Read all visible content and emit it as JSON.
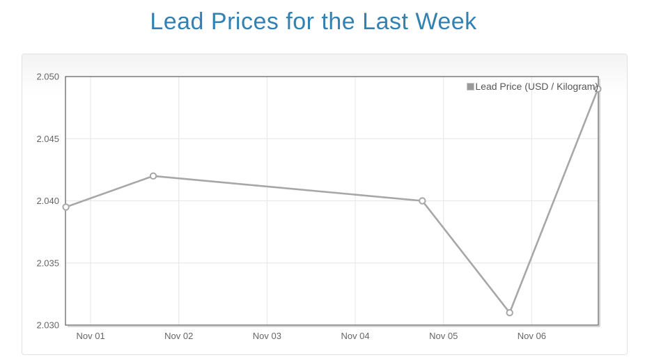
{
  "page": {
    "title": "Lead Prices for the Last Week"
  },
  "colors": {
    "title": "#3381b1",
    "line": "#a7a7a7",
    "marker_fill": "#ffffff",
    "grid": "#e6e6e6",
    "grid_shadow": "#d6d6d6",
    "axis_border": "#5a5a5a",
    "tick_label": "#666666",
    "legend_text": "#555555",
    "legend_swatch": "#999999",
    "plot_background": "#ffffff"
  },
  "chart_data": {
    "type": "line",
    "title": "Lead Prices for the Last Week",
    "legend": {
      "label": "Lead Price (USD / Kilogram)",
      "position": "top-right"
    },
    "grid": true,
    "xlabel": "",
    "ylabel": "",
    "x_range": [
      0.715,
      6.755
    ],
    "y_range": [
      2.03,
      2.05
    ],
    "x_ticks": [
      {
        "pos": 1,
        "label": "Nov 01"
      },
      {
        "pos": 2,
        "label": "Nov 02"
      },
      {
        "pos": 3,
        "label": "Nov 03"
      },
      {
        "pos": 4,
        "label": "Nov 04"
      },
      {
        "pos": 5,
        "label": "Nov 05"
      },
      {
        "pos": 6,
        "label": "Nov 06"
      }
    ],
    "y_ticks": [
      {
        "value": 2.03,
        "label": "2.030"
      },
      {
        "value": 2.035,
        "label": "2.035"
      },
      {
        "value": 2.04,
        "label": "2.040"
      },
      {
        "value": 2.045,
        "label": "2.045"
      },
      {
        "value": 2.05,
        "label": "2.050"
      }
    ],
    "series": [
      {
        "name": "Lead Price (USD / Kilogram)",
        "points": [
          {
            "x": 0.72,
            "y": 2.0395
          },
          {
            "x": 1.71,
            "y": 2.042
          },
          {
            "x": 4.76,
            "y": 2.04
          },
          {
            "x": 5.75,
            "y": 2.031
          },
          {
            "x": 6.75,
            "y": 2.049
          }
        ]
      }
    ]
  }
}
